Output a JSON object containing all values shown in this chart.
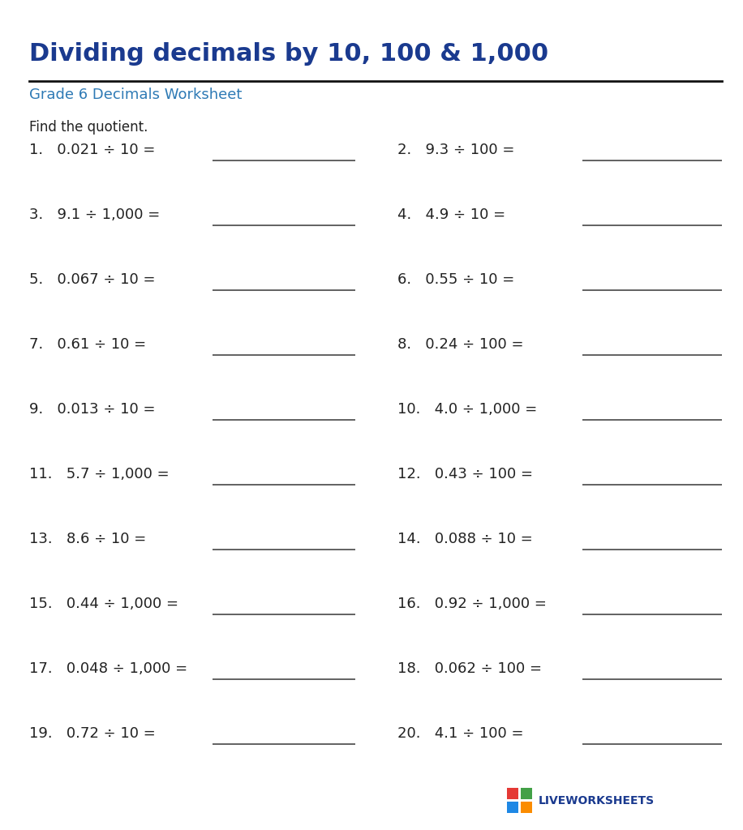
{
  "title": "Dividing decimals by 10, 100 & 1,000",
  "subtitle": "Grade 6 Decimals Worksheet",
  "instruction": "Find the quotient.",
  "title_color": "#1a3a8f",
  "subtitle_color": "#2e7ab5",
  "text_color": "#222222",
  "background_color": "#ffffff",
  "problems": [
    [
      "1.   0.021 ÷ 10 =",
      "2.   9.3 ÷ 100 ="
    ],
    [
      "3.   9.1 ÷ 1,000 =",
      "4.   4.9 ÷ 10 ="
    ],
    [
      "5.   0.067 ÷ 10 =",
      "6.   0.55 ÷ 10 ="
    ],
    [
      "7.   0.61 ÷ 10 =",
      "8.   0.24 ÷ 100 ="
    ],
    [
      "9.   0.013 ÷ 10 =",
      "10.   4.0 ÷ 1,000 ="
    ],
    [
      "11.   5.7 ÷ 1,000 =",
      "12.   0.43 ÷ 100 ="
    ],
    [
      "13.   8.6 ÷ 10 =",
      "14.   0.088 ÷ 10 ="
    ],
    [
      "15.   0.44 ÷ 1,000 =",
      "16.   0.92 ÷ 1,000 ="
    ],
    [
      "17.   0.048 ÷ 1,000 =",
      "18.   0.062 ÷ 100 ="
    ],
    [
      "19.   0.72 ÷ 10 =",
      "20.   4.1 ÷ 100 ="
    ]
  ],
  "line_color": "#555555",
  "title_fontsize": 22,
  "subtitle_fontsize": 13,
  "instruction_fontsize": 12,
  "problem_fontsize": 13,
  "logo_text": "LIVEWORKSHEETS",
  "logo_colors": [
    "#e53935",
    "#43a047",
    "#1e88e5",
    "#fb8c00"
  ],
  "fig_width": 9.16,
  "fig_height": 10.24,
  "dpi": 100
}
